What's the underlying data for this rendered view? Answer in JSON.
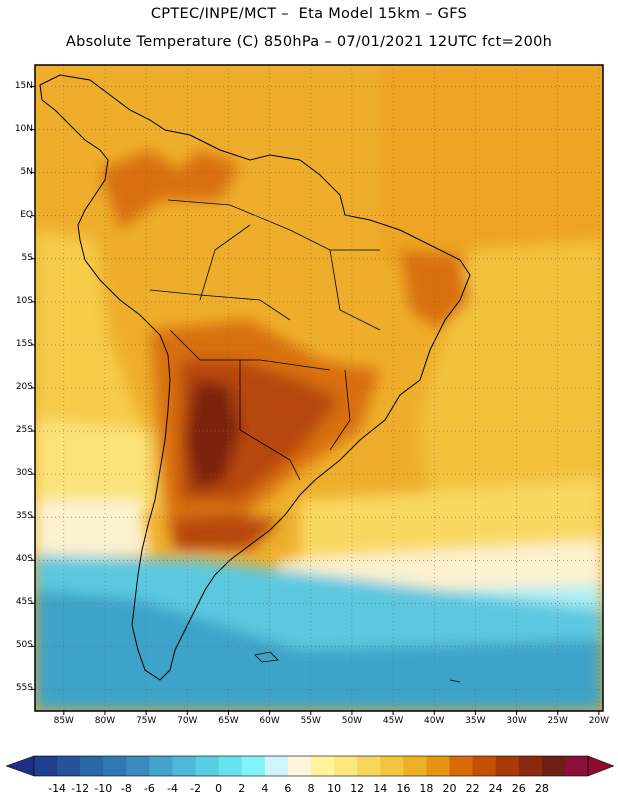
{
  "header": {
    "line1": "CPTEC/INPE/MCT –  Eta Model 15km – GFS",
    "line2": "Absolute Temperature (C) 850hPa – 07/01/2021 12UTC fct=200h"
  },
  "map": {
    "lat_labels": [
      "15N",
      "10N",
      "5N",
      "EQ",
      "5S",
      "10S",
      "15S",
      "20S",
      "25S",
      "30S",
      "35S",
      "40S",
      "45S",
      "50S",
      "55S"
    ],
    "lat_values": [
      15,
      10,
      5,
      0,
      -5,
      -10,
      -15,
      -20,
      -25,
      -30,
      -35,
      -40,
      -45,
      -50,
      -55
    ],
    "lon_labels": [
      "85W",
      "80W",
      "75W",
      "70W",
      "65W",
      "60W",
      "55W",
      "50W",
      "45W",
      "40W",
      "35W",
      "30W",
      "25W",
      "20W"
    ],
    "lon_values": [
      -85,
      -80,
      -75,
      -70,
      -65,
      -60,
      -55,
      -50,
      -45,
      -40,
      -35,
      -30,
      -25,
      -20
    ]
  },
  "colorbar": {
    "labels": [
      "-14",
      "-12",
      "-10",
      "-8",
      "-6",
      "-4",
      "-2",
      "0",
      "2",
      "4",
      "6",
      "8",
      "10",
      "12",
      "14",
      "16",
      "18",
      "20",
      "22",
      "24",
      "26",
      "28"
    ],
    "colors": [
      "#1f3f8f",
      "#24529b",
      "#2a67a8",
      "#3078b3",
      "#3a8cc0",
      "#43a3cc",
      "#4db8d8",
      "#59cde3",
      "#66e2ee",
      "#7ff5f8",
      "#cdf5fb",
      "#fdf5dc",
      "#fef59e",
      "#fee680",
      "#f9d55e",
      "#f3c440",
      "#eeb028",
      "#e59414",
      "#d86a0a",
      "#c44f08",
      "#a83a08",
      "#8a2a10",
      "#6e1e12",
      "#8b0f3a"
    ],
    "left_arrow_color": "#1e2f86",
    "right_arrow_color": "#8b0a2e"
  },
  "palette": {
    "ocean_south": "#3ea3c8",
    "ocean_mid": "#5cc8e0",
    "ocean_light": "#aeeef4",
    "cream": "#fdf2d0",
    "yellow": "#f7d24a",
    "orange": "#eda424",
    "warm": "#d97010",
    "hot": "#b8460c",
    "hottest": "#7c2410",
    "land_line": "#000000",
    "grid_line": "#7a6a50"
  }
}
